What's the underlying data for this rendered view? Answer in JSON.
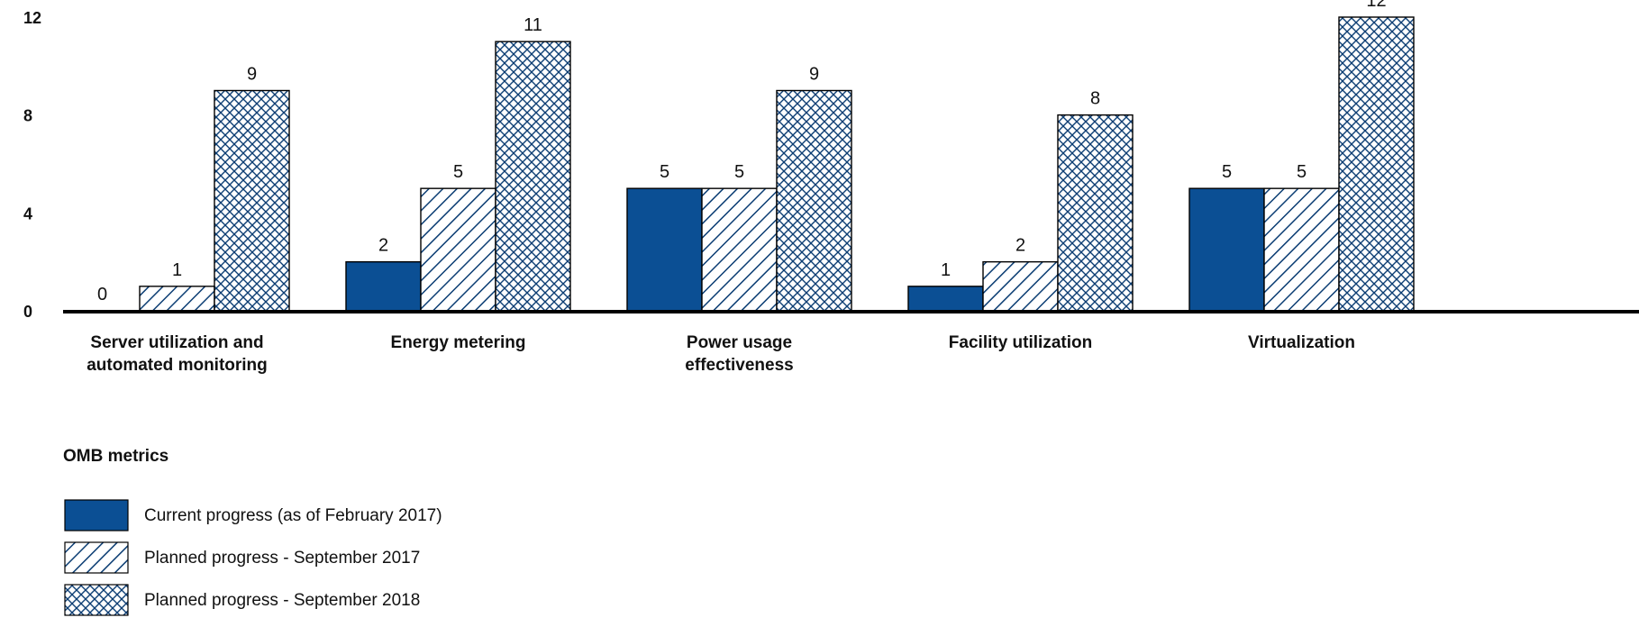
{
  "chart_data": {
    "type": "bar",
    "categories": [
      [
        "Server utilization and",
        "automated monitoring"
      ],
      [
        "Energy metering"
      ],
      [
        "Power usage",
        "effectiveness"
      ],
      [
        "Facility utilization"
      ],
      [
        "Virtualization"
      ]
    ],
    "series": [
      {
        "name": "Current progress (as of February 2017)",
        "values": [
          0,
          2,
          5,
          1,
          5
        ],
        "fill": "solid"
      },
      {
        "name": "Planned progress - September 2017",
        "values": [
          1,
          5,
          5,
          2,
          5
        ],
        "fill": "diagonal-hatch"
      },
      {
        "name": "Planned progress - September 2018",
        "values": [
          9,
          11,
          9,
          8,
          12
        ],
        "fill": "cross-hatch"
      }
    ],
    "xlabel": "OMB metrics",
    "ylim": [
      0,
      12
    ],
    "yticks": [
      "0",
      "4",
      "8",
      "12"
    ],
    "grid": false,
    "legend_position": "bottom-left",
    "colors": {
      "bar": "#0b4f94",
      "axis": "#000000",
      "hatch": "#0b3d73"
    }
  }
}
